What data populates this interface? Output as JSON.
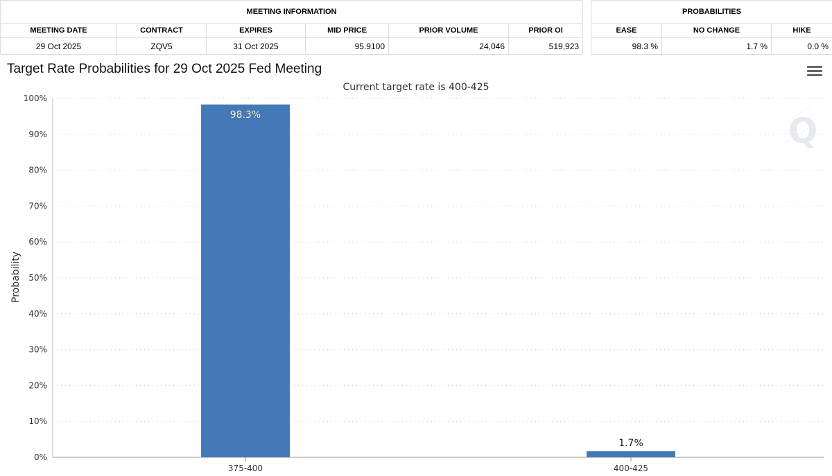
{
  "meeting_info": {
    "group_header": "MEETING INFORMATION",
    "columns": [
      "MEETING DATE",
      "CONTRACT",
      "EXPIRES",
      "MID PRICE",
      "PRIOR VOLUME",
      "PRIOR OI"
    ],
    "row": [
      "29 Oct 2025",
      "ZQV5",
      "31 Oct 2025",
      "95.9100",
      "24,046",
      "519,923"
    ]
  },
  "probabilities": {
    "group_header": "PROBABILITIES",
    "columns": [
      "EASE",
      "NO CHANGE",
      "HIKE"
    ],
    "row": [
      "98.3 %",
      "1.7 %",
      "0.0 %"
    ]
  },
  "chart_title": "Target Rate Probabilities for 29 Oct 2025 Fed Meeting",
  "menu_icon": "hamburger-menu-icon",
  "watermark_icon": "q-logo-icon",
  "colors": {
    "bar": "#4279b6",
    "grid": "#c8c8c8",
    "axis_text": "#333333"
  },
  "chart_data": {
    "type": "bar",
    "title": "Current target rate is 400-425",
    "xlabel": "",
    "ylabel": "Probability",
    "categories": [
      "375-400",
      "400-425"
    ],
    "values": [
      98.3,
      1.7
    ],
    "data_labels": [
      "98.3%",
      "1.7%"
    ],
    "ylim": [
      0,
      100
    ],
    "yticks": [
      0,
      10,
      20,
      30,
      40,
      50,
      60,
      70,
      80,
      90,
      100
    ],
    "ytick_labels": [
      "0%",
      "10%",
      "20%",
      "30%",
      "40%",
      "50%",
      "60%",
      "70%",
      "80%",
      "90%",
      "100%"
    ],
    "grid": true,
    "legend": "none"
  }
}
